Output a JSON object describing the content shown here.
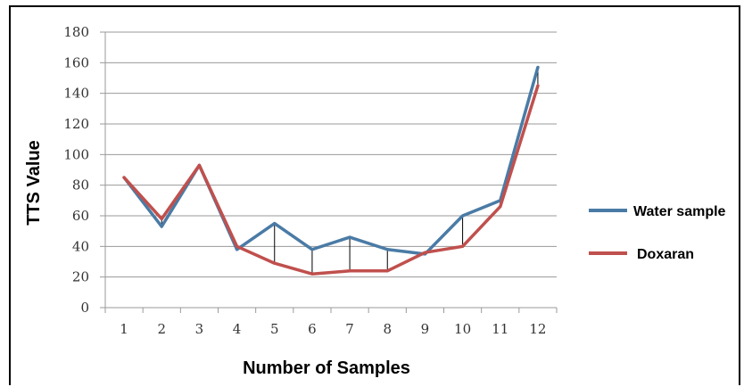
{
  "chart_data": {
    "type": "line",
    "xlabel": "Number of Samples",
    "ylabel": "TTS Value",
    "categories": [
      "1",
      "2",
      "3",
      "4",
      "5",
      "6",
      "7",
      "8",
      "9",
      "10",
      "11",
      "12"
    ],
    "ylim": [
      0,
      180
    ],
    "yticks": [
      0,
      20,
      40,
      60,
      80,
      100,
      120,
      140,
      160,
      180
    ],
    "grid": "horizontal",
    "legend": "right",
    "series": [
      {
        "name": "Water sample",
        "color": "#4a7ba6",
        "values": [
          85,
          53,
          93,
          38,
          55,
          38,
          46,
          38,
          35,
          60,
          70,
          157
        ]
      },
      {
        "name": "Doxaran",
        "color": "#c0504d",
        "values": [
          85,
          58,
          93,
          40,
          29,
          22,
          24,
          24,
          36,
          40,
          66,
          145
        ]
      }
    ],
    "difference_lines": "vertical black lines connecting the two series at each sample"
  }
}
